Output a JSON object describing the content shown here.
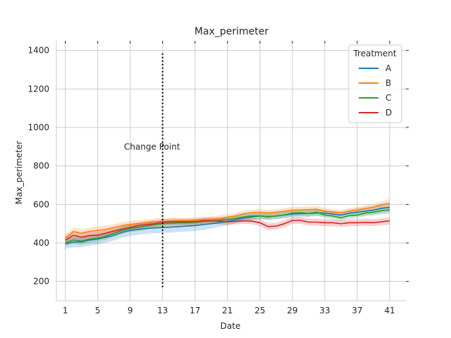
{
  "chart_data": {
    "type": "line",
    "title": "Max_perimeter",
    "xlabel": "Date",
    "ylabel": "Max_perimeter",
    "xlim": [
      -0.1,
      43
    ],
    "ylim": [
      100,
      1450
    ],
    "xticks": [
      1,
      5,
      9,
      13,
      17,
      21,
      25,
      29,
      33,
      37,
      41
    ],
    "yticks": [
      200,
      400,
      600,
      800,
      1000,
      1200,
      1400
    ],
    "grid": true,
    "legend": {
      "title": "Treatment",
      "placement": "top-right"
    },
    "annotation": {
      "text": "Change Point",
      "x": 13,
      "y_low": 160,
      "y_high": 1385
    },
    "x": [
      1,
      2,
      3,
      4,
      5,
      6,
      7,
      8,
      9,
      10,
      11,
      12,
      13,
      14,
      15,
      16,
      17,
      18,
      19,
      20,
      21,
      22,
      23,
      24,
      25,
      26,
      27,
      28,
      29,
      30,
      31,
      32,
      33,
      34,
      35,
      36,
      37,
      38,
      39,
      40,
      41
    ],
    "series": [
      {
        "name": "A",
        "color": "#1f77b4",
        "values": [
          395,
          405,
          405,
          415,
          420,
          430,
          440,
          455,
          465,
          470,
          475,
          478,
          480,
          482,
          485,
          488,
          490,
          495,
          500,
          505,
          512,
          520,
          530,
          535,
          540,
          535,
          540,
          545,
          550,
          552,
          553,
          555,
          555,
          550,
          545,
          555,
          560,
          565,
          570,
          580,
          585
        ],
        "ci": [
          25,
          28,
          28,
          28,
          28,
          28,
          28,
          28,
          28,
          28,
          28,
          28,
          28,
          28,
          28,
          28,
          28,
          28,
          25,
          22,
          20,
          18,
          18,
          16,
          16,
          16,
          16,
          16,
          16,
          16,
          16,
          16,
          16,
          18,
          18,
          18,
          20,
          20,
          22,
          24,
          26
        ]
      },
      {
        "name": "B",
        "color": "#ff7f0e",
        "values": [
          425,
          460,
          450,
          460,
          465,
          470,
          480,
          490,
          497,
          500,
          505,
          510,
          512,
          514,
          515,
          515,
          518,
          520,
          523,
          527,
          533,
          540,
          552,
          557,
          560,
          555,
          560,
          565,
          570,
          572,
          573,
          575,
          565,
          560,
          555,
          565,
          570,
          578,
          585,
          597,
          605
        ],
        "ci": [
          20,
          22,
          20,
          20,
          20,
          20,
          18,
          18,
          18,
          18,
          18,
          16,
          16,
          16,
          16,
          16,
          16,
          16,
          16,
          16,
          16,
          16,
          16,
          16,
          16,
          16,
          16,
          16,
          16,
          16,
          16,
          16,
          16,
          16,
          16,
          16,
          16,
          18,
          18,
          20,
          24
        ]
      },
      {
        "name": "C",
        "color": "#2ca02c",
        "values": [
          400,
          415,
          410,
          420,
          425,
          435,
          450,
          465,
          475,
          480,
          488,
          495,
          500,
          502,
          505,
          505,
          507,
          512,
          515,
          518,
          522,
          528,
          535,
          540,
          540,
          537,
          540,
          545,
          555,
          557,
          553,
          560,
          545,
          540,
          530,
          542,
          545,
          555,
          560,
          568,
          572
        ],
        "ci": [
          18,
          18,
          18,
          18,
          18,
          18,
          18,
          18,
          18,
          18,
          18,
          16,
          16,
          16,
          16,
          16,
          16,
          16,
          16,
          16,
          16,
          16,
          16,
          16,
          16,
          16,
          16,
          16,
          16,
          16,
          16,
          16,
          16,
          16,
          16,
          16,
          16,
          16,
          18,
          18,
          20
        ]
      },
      {
        "name": "D",
        "color": "#d62728",
        "values": [
          415,
          440,
          430,
          438,
          440,
          450,
          462,
          470,
          480,
          490,
          495,
          500,
          508,
          510,
          510,
          510,
          510,
          515,
          515,
          513,
          510,
          512,
          515,
          513,
          505,
          485,
          487,
          500,
          517,
          517,
          508,
          508,
          505,
          505,
          500,
          505,
          505,
          507,
          505,
          510,
          515
        ],
        "ci": [
          20,
          20,
          20,
          20,
          18,
          18,
          18,
          18,
          18,
          18,
          18,
          18,
          16,
          16,
          16,
          16,
          16,
          16,
          16,
          16,
          16,
          16,
          16,
          16,
          18,
          18,
          18,
          18,
          18,
          18,
          18,
          18,
          18,
          18,
          18,
          18,
          18,
          18,
          18,
          18,
          20
        ]
      }
    ]
  }
}
